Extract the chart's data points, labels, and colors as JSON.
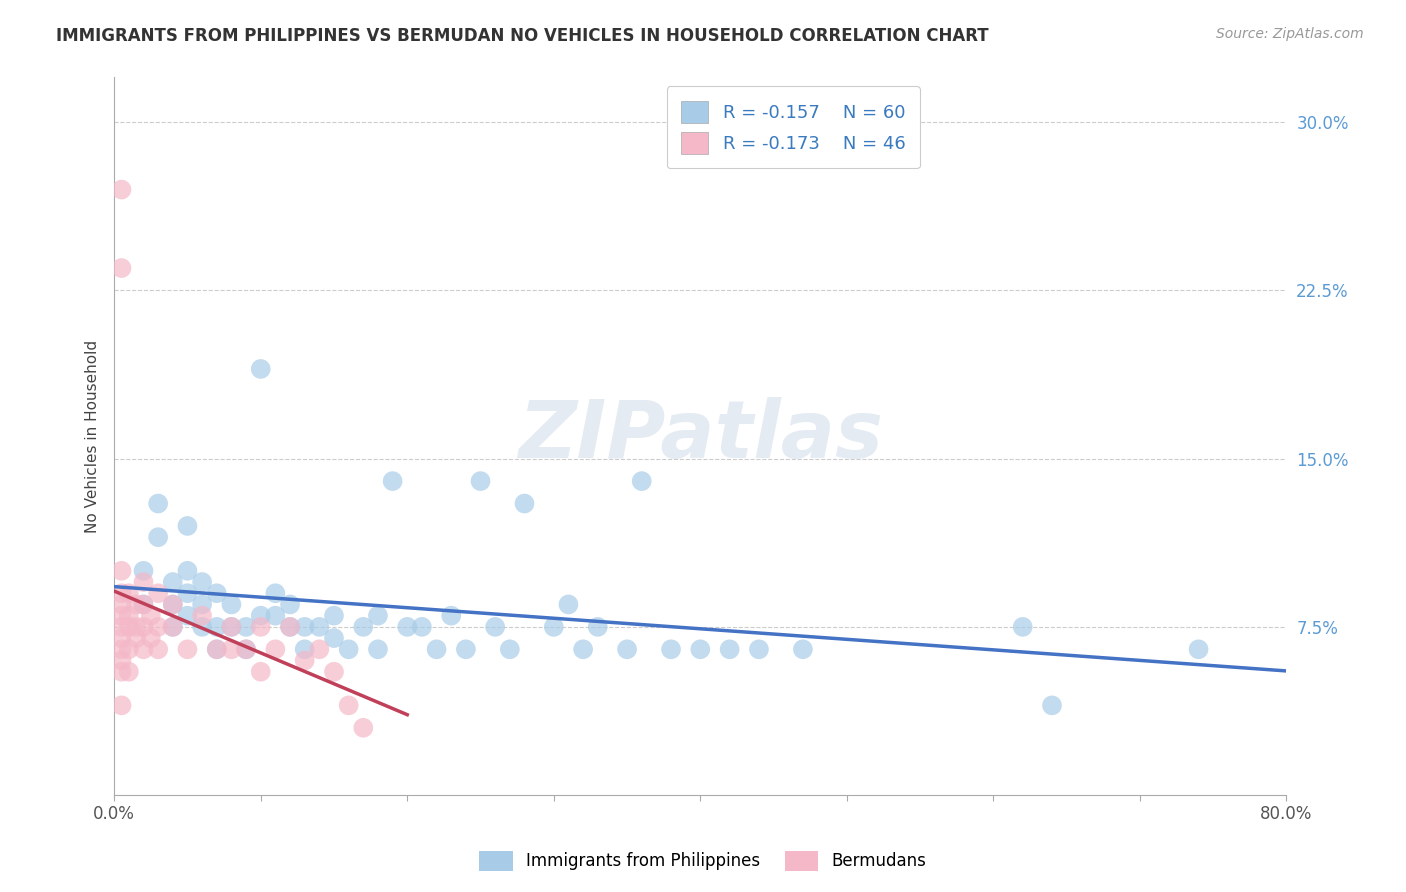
{
  "title": "IMMIGRANTS FROM PHILIPPINES VS BERMUDAN NO VEHICLES IN HOUSEHOLD CORRELATION CHART",
  "source": "Source: ZipAtlas.com",
  "ylabel": "No Vehicles in Household",
  "xlim": [
    0.0,
    0.8
  ],
  "ylim": [
    0.0,
    0.32
  ],
  "yticks": [
    0.075,
    0.15,
    0.225,
    0.3
  ],
  "ytick_labels": [
    "7.5%",
    "15.0%",
    "22.5%",
    "30.0%"
  ],
  "xticks": [
    0.0,
    0.1,
    0.2,
    0.3,
    0.4,
    0.5,
    0.6,
    0.7,
    0.8
  ],
  "xtick_labels": [
    "0.0%",
    "",
    "",
    "",
    "",
    "",
    "",
    "",
    "80.0%"
  ],
  "blue_color": "#a8cce8",
  "pink_color": "#f4b8c8",
  "blue_line_color": "#4472c4",
  "pink_line_color": "#c0405a",
  "legend_blue_label": "Immigrants from Philippines",
  "legend_pink_label": "Bermudans",
  "blue_R": -0.157,
  "blue_N": 60,
  "pink_R": -0.173,
  "pink_N": 46,
  "watermark": "ZIPatlas",
  "blue_scatter": [
    [
      0.02,
      0.1
    ],
    [
      0.02,
      0.085
    ],
    [
      0.03,
      0.13
    ],
    [
      0.03,
      0.115
    ],
    [
      0.04,
      0.095
    ],
    [
      0.04,
      0.085
    ],
    [
      0.04,
      0.075
    ],
    [
      0.05,
      0.1
    ],
    [
      0.05,
      0.09
    ],
    [
      0.05,
      0.12
    ],
    [
      0.05,
      0.08
    ],
    [
      0.06,
      0.095
    ],
    [
      0.06,
      0.085
    ],
    [
      0.06,
      0.075
    ],
    [
      0.07,
      0.09
    ],
    [
      0.07,
      0.075
    ],
    [
      0.07,
      0.065
    ],
    [
      0.08,
      0.085
    ],
    [
      0.08,
      0.075
    ],
    [
      0.09,
      0.075
    ],
    [
      0.09,
      0.065
    ],
    [
      0.1,
      0.08
    ],
    [
      0.1,
      0.19
    ],
    [
      0.11,
      0.08
    ],
    [
      0.11,
      0.09
    ],
    [
      0.12,
      0.085
    ],
    [
      0.12,
      0.075
    ],
    [
      0.13,
      0.075
    ],
    [
      0.13,
      0.065
    ],
    [
      0.14,
      0.075
    ],
    [
      0.15,
      0.08
    ],
    [
      0.15,
      0.07
    ],
    [
      0.16,
      0.065
    ],
    [
      0.17,
      0.075
    ],
    [
      0.18,
      0.08
    ],
    [
      0.18,
      0.065
    ],
    [
      0.19,
      0.14
    ],
    [
      0.2,
      0.075
    ],
    [
      0.21,
      0.075
    ],
    [
      0.22,
      0.065
    ],
    [
      0.23,
      0.08
    ],
    [
      0.24,
      0.065
    ],
    [
      0.25,
      0.14
    ],
    [
      0.26,
      0.075
    ],
    [
      0.27,
      0.065
    ],
    [
      0.28,
      0.13
    ],
    [
      0.3,
      0.075
    ],
    [
      0.31,
      0.085
    ],
    [
      0.32,
      0.065
    ],
    [
      0.33,
      0.075
    ],
    [
      0.35,
      0.065
    ],
    [
      0.36,
      0.14
    ],
    [
      0.38,
      0.065
    ],
    [
      0.4,
      0.065
    ],
    [
      0.42,
      0.065
    ],
    [
      0.44,
      0.065
    ],
    [
      0.47,
      0.065
    ],
    [
      0.62,
      0.075
    ],
    [
      0.64,
      0.04
    ],
    [
      0.74,
      0.065
    ]
  ],
  "pink_scatter": [
    [
      0.005,
      0.27
    ],
    [
      0.005,
      0.235
    ],
    [
      0.005,
      0.1
    ],
    [
      0.005,
      0.09
    ],
    [
      0.005,
      0.085
    ],
    [
      0.005,
      0.08
    ],
    [
      0.005,
      0.075
    ],
    [
      0.005,
      0.07
    ],
    [
      0.005,
      0.065
    ],
    [
      0.005,
      0.06
    ],
    [
      0.005,
      0.055
    ],
    [
      0.005,
      0.04
    ],
    [
      0.01,
      0.09
    ],
    [
      0.01,
      0.08
    ],
    [
      0.01,
      0.075
    ],
    [
      0.01,
      0.065
    ],
    [
      0.01,
      0.055
    ],
    [
      0.015,
      0.085
    ],
    [
      0.015,
      0.075
    ],
    [
      0.015,
      0.07
    ],
    [
      0.02,
      0.095
    ],
    [
      0.02,
      0.085
    ],
    [
      0.02,
      0.075
    ],
    [
      0.02,
      0.065
    ],
    [
      0.025,
      0.08
    ],
    [
      0.025,
      0.07
    ],
    [
      0.03,
      0.09
    ],
    [
      0.03,
      0.075
    ],
    [
      0.03,
      0.065
    ],
    [
      0.04,
      0.085
    ],
    [
      0.04,
      0.075
    ],
    [
      0.05,
      0.065
    ],
    [
      0.06,
      0.08
    ],
    [
      0.07,
      0.065
    ],
    [
      0.08,
      0.075
    ],
    [
      0.08,
      0.065
    ],
    [
      0.09,
      0.065
    ],
    [
      0.1,
      0.075
    ],
    [
      0.1,
      0.055
    ],
    [
      0.11,
      0.065
    ],
    [
      0.12,
      0.075
    ],
    [
      0.13,
      0.06
    ],
    [
      0.14,
      0.065
    ],
    [
      0.15,
      0.055
    ],
    [
      0.16,
      0.04
    ],
    [
      0.17,
      0.03
    ]
  ]
}
